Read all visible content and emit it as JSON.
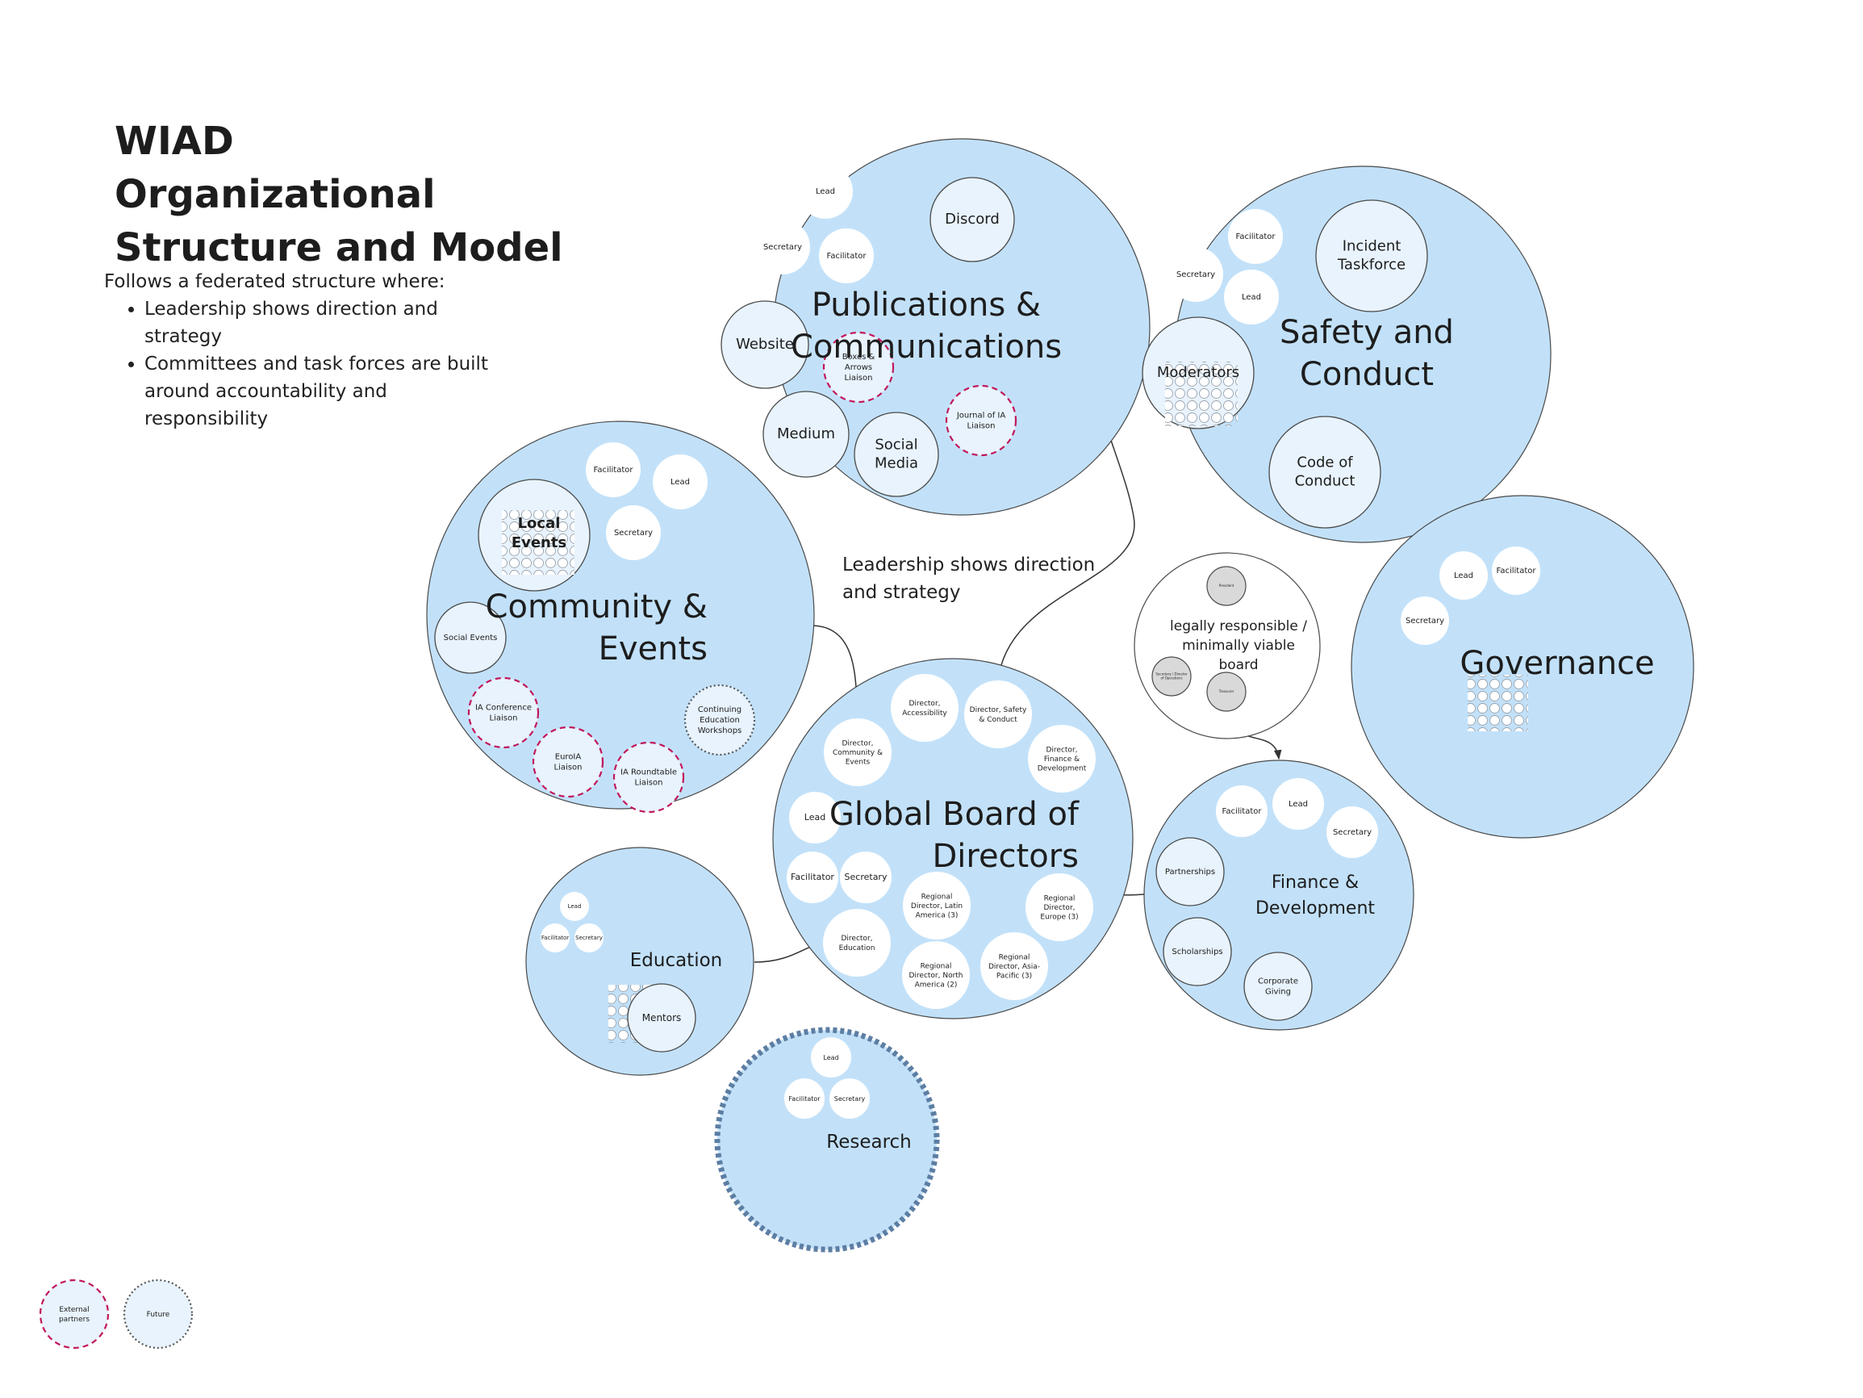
{
  "header": {
    "title_line1": "WIAD Organizational",
    "title_line2": "Structure and Model",
    "intro": "Follows a federated structure where:",
    "bullets": [
      "Leadership shows direction and strategy",
      "Committees and task forces are built around accountability and responsibility"
    ]
  },
  "annotation": {
    "leadership_line1": "Leadership shows direction",
    "leadership_line2": "and strategy"
  },
  "groups": {
    "publications": {
      "title_lines": [
        "Publications &",
        "Communications"
      ],
      "members": {
        "lead": "Lead",
        "secretary": "Secretary",
        "facilitator": "Facilitator",
        "discord": "Discord",
        "website": "Website",
        "medium": "Medium",
        "social_media": [
          "Social",
          "Media"
        ],
        "boxes_arrows": [
          "Boxes &",
          "Arrows",
          "Liaison"
        ],
        "journal_ia": [
          "Journal of IA",
          "Liaison"
        ]
      }
    },
    "safety": {
      "title_lines": [
        "Safety and",
        "Conduct"
      ],
      "members": {
        "facilitator": "Facilitator",
        "secretary": "Secretary",
        "lead": "Lead",
        "incident": [
          "Incident",
          "Taskforce"
        ],
        "moderators": "Moderators",
        "code": [
          "Code of",
          "Conduct"
        ]
      }
    },
    "community": {
      "title_lines": [
        "Community &",
        "Events"
      ],
      "members": {
        "facilitator": "Facilitator",
        "lead": "Lead",
        "secretary": "Secretary",
        "local_events": [
          "Local",
          "Events"
        ],
        "social_events": "Social Events",
        "ia_conference": [
          "IA Conference",
          "Liaison"
        ],
        "euroia": [
          "EuroIA",
          "Liaison"
        ],
        "ia_roundtable": [
          "IA Roundtable",
          "Liaison"
        ],
        "continuing_ed": [
          "Continuing",
          "Education",
          "Workshops"
        ]
      }
    },
    "board": {
      "title_lines": [
        "Global Board of",
        "Directors"
      ],
      "members": {
        "accessibility": [
          "Director,",
          "Accessibility"
        ],
        "safety": [
          "Director, Safety",
          "& Conduct"
        ],
        "community": [
          "Director,",
          "Community &",
          "Events"
        ],
        "finance": [
          "Director,",
          "Finance &",
          "Development"
        ],
        "lead": "Lead",
        "facilitator": "Facilitator",
        "secretary": "Secretary",
        "latam": [
          "Regional",
          "Director, Latin",
          "America (3)"
        ],
        "europe": [
          "Regional",
          "Director,",
          "Europe (3)"
        ],
        "education": [
          "Director,",
          "Education"
        ],
        "north_america": [
          "Regional",
          "Director, North",
          "America (2)"
        ],
        "apac": [
          "Regional",
          "Director, Asia-",
          "Pacific (3)"
        ]
      }
    },
    "legal": {
      "title_lines": [
        "legally responsible /",
        "minimally viable",
        "board"
      ],
      "members": {
        "president": "President",
        "secretary": [
          "Secretary / Director",
          "of Operations"
        ],
        "treasurer": "Treasurer"
      }
    },
    "governance": {
      "title": "Governance",
      "members": {
        "lead": "Lead",
        "facilitator": "Facilitator",
        "secretary": "Secretary"
      }
    },
    "finance": {
      "title_lines": [
        "Finance &",
        "Development"
      ],
      "members": {
        "facilitator": "Facilitator",
        "lead": "Lead",
        "secretary": "Secretary",
        "partnerships": "Partnerships",
        "scholarships": "Scholarships",
        "corporate": [
          "Corporate",
          "Giving"
        ]
      }
    },
    "education": {
      "title": "Education",
      "members": {
        "lead": "Lead",
        "facilitator": "Facilitator",
        "secretary": "Secretary",
        "mentors": "Mentors"
      }
    },
    "research": {
      "title": "Research",
      "members": {
        "lead": "Lead",
        "facilitator": "Facilitator",
        "secretary": "Secretary"
      }
    }
  },
  "legend": {
    "external": [
      "External",
      "partners"
    ],
    "future": "Future"
  },
  "colors": {
    "group_fill": "#c2e1f9",
    "member_fill": "#ffffff",
    "member_fill_tinted": "#e8f3fd",
    "outline": "#4a4a4a",
    "external": "#c2185b",
    "future": "#555555",
    "research_border": "#5d7ea3",
    "legal_fill": "#d9d9d9"
  }
}
